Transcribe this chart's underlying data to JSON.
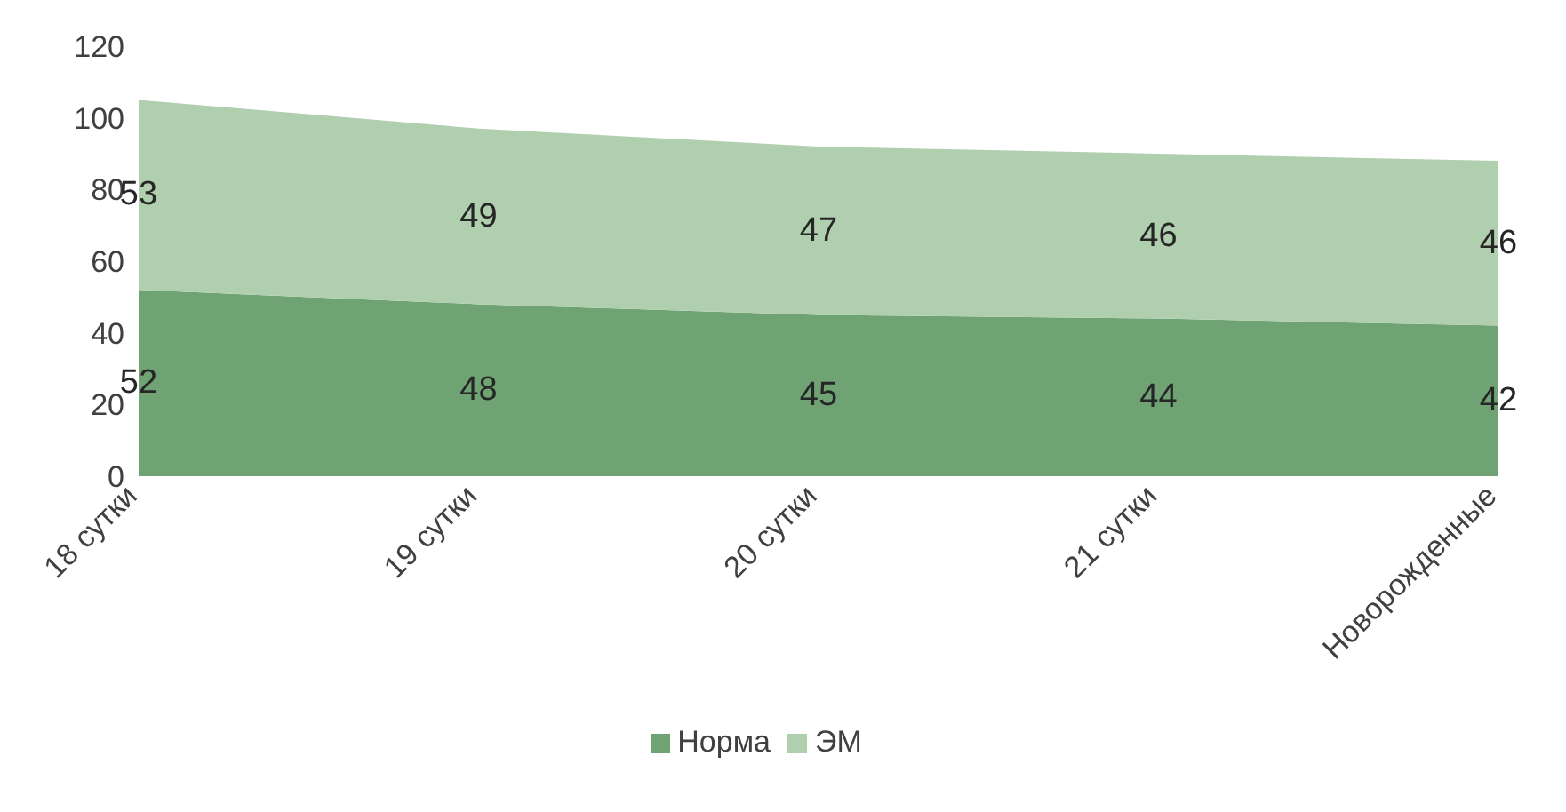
{
  "chart_data": {
    "type": "area",
    "stacked": true,
    "categories": [
      "18 сутки",
      "19 сутки",
      "20 сутки",
      "21 сутки",
      "Новорожденные"
    ],
    "series": [
      {
        "name": "Норма",
        "color": "#70a373",
        "values": [
          52,
          48,
          45,
          44,
          42
        ]
      },
      {
        "name": "ЭМ",
        "color": "#b0cfae",
        "values": [
          53,
          49,
          47,
          46,
          46
        ]
      }
    ],
    "ylim": [
      0,
      120
    ],
    "yticks": [
      0,
      20,
      40,
      60,
      80,
      100,
      120
    ],
    "data_labels": true,
    "grid": false,
    "legend": "bottom"
  }
}
